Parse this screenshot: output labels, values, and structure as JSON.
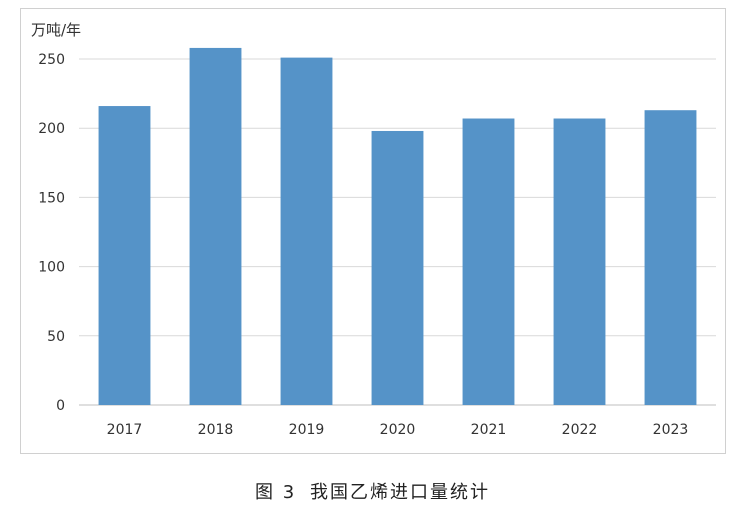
{
  "chart_data": {
    "type": "bar",
    "ylabel": "万吨/年",
    "categories": [
      "2017",
      "2018",
      "2019",
      "2020",
      "2021",
      "2022",
      "2023"
    ],
    "values": [
      216,
      258,
      251,
      198,
      207,
      207,
      213
    ],
    "ylim": [
      0,
      250
    ],
    "yticks": [
      0,
      50,
      100,
      150,
      200,
      250
    ],
    "grid": true,
    "bar_color": "#5593c8",
    "grid_color": "#d9d9d9"
  },
  "caption": {
    "figure_label": "图 3",
    "title": "我国乙烯进口量统计"
  }
}
